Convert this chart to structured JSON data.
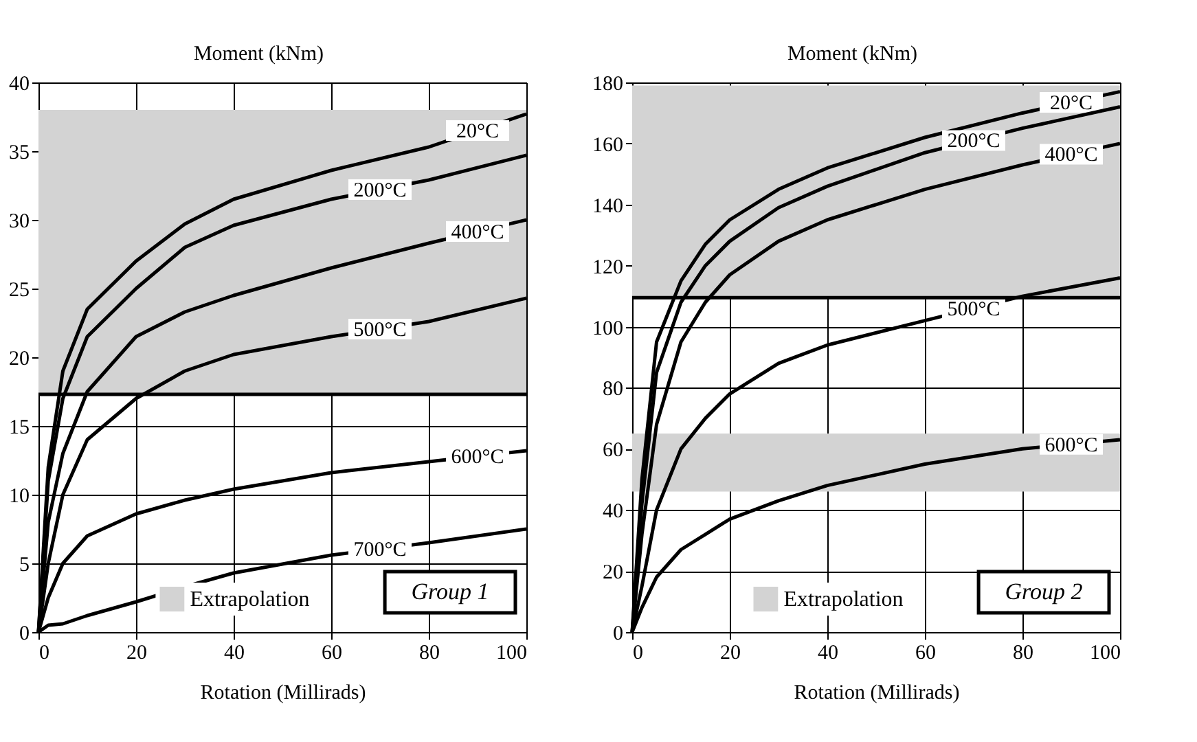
{
  "chart_data": [
    {
      "type": "line",
      "xlabel": "Rotation (Millirads)",
      "ylabel": "Moment (kNm)",
      "x": [
        0,
        2,
        5,
        10,
        20,
        30,
        40,
        60,
        80,
        100
      ],
      "series": [
        {
          "name": "20°C",
          "color": "#000000",
          "values": [
            0,
            12,
            19,
            23.5,
            27,
            29.7,
            31.5,
            33.6,
            35.3,
            37.7
          ]
        },
        {
          "name": "200°C",
          "color": "#000000",
          "values": [
            0,
            11,
            17,
            21.5,
            25,
            28,
            29.6,
            31.5,
            32.9,
            34.7
          ]
        },
        {
          "name": "400°C",
          "color": "#000000",
          "values": [
            0,
            8,
            13,
            17.5,
            21.5,
            23.3,
            24.5,
            26.5,
            28.3,
            30
          ]
        },
        {
          "name": "500°C",
          "color": "#000000",
          "values": [
            0,
            5,
            10,
            14,
            17,
            19,
            20.2,
            21.5,
            22.6,
            24.3
          ]
        },
        {
          "name": "600°C",
          "color": "#000000",
          "values": [
            0,
            2.5,
            5,
            7,
            8.6,
            9.6,
            10.4,
            11.6,
            12.4,
            13.2
          ]
        },
        {
          "name": "700°C",
          "color": "#000000",
          "values": [
            0,
            0.5,
            0.6,
            1.2,
            2.2,
            3.3,
            4.3,
            5.6,
            6.5,
            7.5
          ]
        }
      ],
      "bands": [
        {
          "axis": "y",
          "from": 17.3,
          "to": 38,
          "label": "Extrapolation",
          "color": "#d3d3d3"
        }
      ],
      "ref_lines": [
        {
          "axis": "y",
          "value": 17.3,
          "color": "#000000"
        }
      ],
      "annotations": [
        "Group 1"
      ],
      "xlim": [
        0,
        100
      ],
      "xticks": [
        0,
        20,
        40,
        60,
        80,
        100
      ],
      "ylim": [
        0,
        40
      ],
      "yticks": [
        0,
        5,
        10,
        15,
        20,
        25,
        30,
        35,
        40
      ],
      "grid": true,
      "line_style": "solid",
      "marker": "none"
    },
    {
      "type": "line",
      "xlabel": "Rotation (Millirads)",
      "ylabel": "Moment (kNm)",
      "x": [
        0,
        2,
        5,
        10,
        15,
        20,
        30,
        40,
        60,
        80,
        100
      ],
      "series": [
        {
          "name": "20°C",
          "color": "#000000",
          "values": [
            0,
            50,
            95,
            115,
            127,
            135,
            145,
            152,
            162,
            170,
            177
          ]
        },
        {
          "name": "200°C",
          "color": "#000000",
          "values": [
            0,
            42,
            85,
            108,
            120,
            128,
            139,
            146,
            157,
            165,
            172
          ]
        },
        {
          "name": "400°C",
          "color": "#000000",
          "values": [
            0,
            32,
            68,
            95,
            108,
            117,
            128,
            135,
            145,
            153,
            160
          ]
        },
        {
          "name": "500°C",
          "color": "#000000",
          "values": [
            0,
            15,
            40,
            60,
            70,
            78,
            88,
            94,
            102,
            110,
            116
          ]
        },
        {
          "name": "600°C",
          "color": "#000000",
          "values": [
            0,
            8,
            18,
            27,
            32,
            37,
            43,
            48,
            55,
            60,
            63
          ]
        }
      ],
      "bands": [
        {
          "axis": "y",
          "from": 109.5,
          "to": 179,
          "label": "Extrapolation",
          "color": "#d3d3d3"
        },
        {
          "axis": "y",
          "from": 46,
          "to": 65,
          "color": "#d3d3d3"
        }
      ],
      "ref_lines": [
        {
          "axis": "y",
          "value": 109.5,
          "color": "#000000"
        }
      ],
      "annotations": [
        "Group 2"
      ],
      "xlim": [
        0,
        100
      ],
      "xticks": [
        0,
        20,
        40,
        60,
        80,
        100
      ],
      "ylim": [
        0,
        180
      ],
      "yticks": [
        0,
        20,
        40,
        60,
        80,
        100,
        120,
        140,
        160,
        180
      ],
      "grid": true,
      "line_style": "solid",
      "marker": "none"
    }
  ]
}
